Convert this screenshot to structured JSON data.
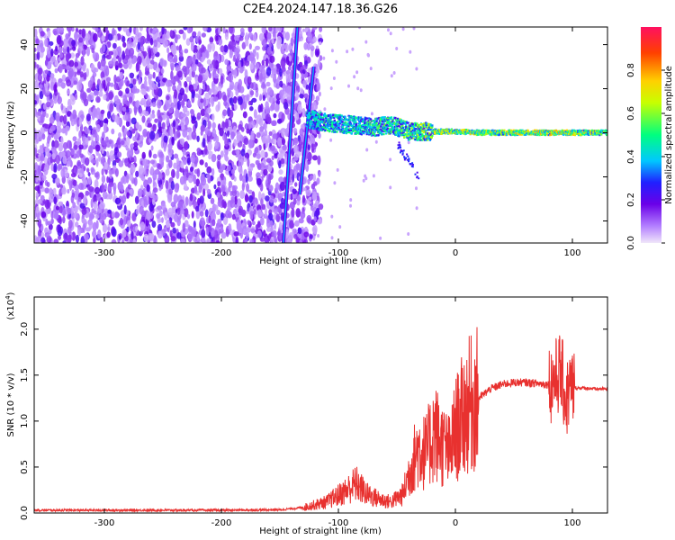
{
  "chart_data": [
    {
      "type": "heatmap",
      "title": "C2E4.2024.147.18.36.G26",
      "xlabel": "Height of straight line (km)",
      "ylabel": "Frequency (Hz)",
      "xlim": [
        -360,
        130
      ],
      "ylim": [
        -50,
        48
      ],
      "x_ticks": [
        -300,
        -200,
        -100,
        0,
        100
      ],
      "y_ticks": [
        -40,
        -20,
        0,
        20,
        40
      ],
      "colorbar": {
        "label": "Normalized spectral amplitude",
        "range": [
          0,
          1
        ],
        "ticks": [
          "0.0",
          "0.2",
          "0.4",
          "0.6",
          "0.8"
        ],
        "colors": [
          "#f0e6fa",
          "#b27dff",
          "#6a00e8",
          "#2020ff",
          "#00c8ff",
          "#00ff80",
          "#c8ff00",
          "#ffd000",
          "#ff4000",
          "#ff1060"
        ]
      },
      "features": {
        "noise_region_x": [
          -360,
          -130
        ],
        "signal_trace": {
          "x": [
            -130,
            -110,
            -90,
            -70,
            -55,
            -40,
            -25,
            -10,
            0,
            20,
            40,
            60,
            80,
            100,
            130
          ],
          "freq": [
            7,
            5,
            4,
            3,
            4,
            1,
            1,
            1,
            1,
            0.5,
            0.5,
            0.5,
            0.5,
            0.5,
            0.5
          ],
          "amplitude": [
            0.3,
            0.35,
            0.35,
            0.4,
            0.4,
            0.45,
            0.55,
            0.5,
            0.55,
            0.5,
            0.5,
            0.55,
            0.6,
            0.55,
            0.5
          ]
        }
      }
    },
    {
      "type": "line",
      "xlabel": "Height of straight line (km)",
      "ylabel": "SNR (10 * v/v)",
      "y_scale_label": "(x10",
      "y_scale_exp": "4",
      "color": "#e8312f",
      "xlim": [
        -360,
        130
      ],
      "ylim": [
        0,
        23500
      ],
      "x_ticks": [
        -300,
        -200,
        -100,
        0,
        100
      ],
      "y_ticks": [
        0,
        5000,
        10000,
        15000,
        20000
      ],
      "y_tick_labels": [
        "0.0",
        "0.5",
        "1.0",
        "1.5",
        "2.0"
      ],
      "x": [
        -360,
        -300,
        -250,
        -200,
        -150,
        -130,
        -110,
        -95,
        -85,
        -75,
        -65,
        -55,
        -45,
        -38,
        -32,
        -25,
        -18,
        -12,
        -5,
        0,
        10,
        20,
        30,
        40,
        50,
        60,
        70,
        80,
        85,
        90,
        95,
        97,
        100,
        110,
        120,
        130
      ],
      "y": [
        300,
        300,
        300,
        300,
        350,
        600,
        1200,
        2300,
        3200,
        2000,
        1500,
        1200,
        2000,
        5000,
        7000,
        6500,
        9000,
        7500,
        6500,
        9000,
        11500,
        12500,
        13500,
        14000,
        14200,
        14200,
        14100,
        14000,
        14500,
        15500,
        12000,
        13500,
        13600,
        13600,
        13500,
        13500
      ]
    }
  ]
}
